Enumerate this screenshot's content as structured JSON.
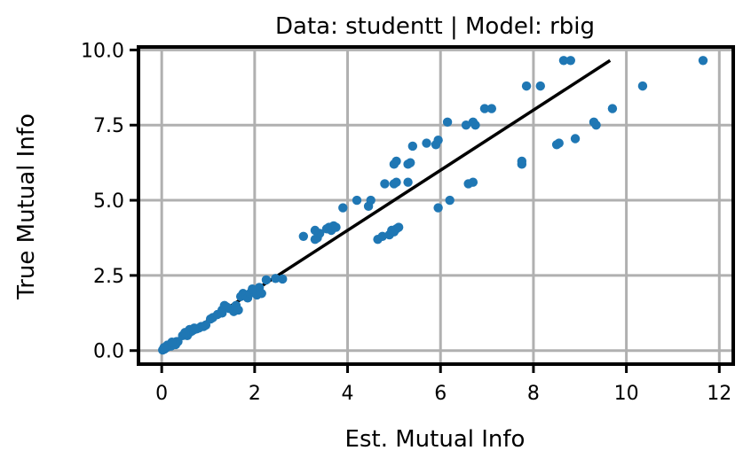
{
  "chart_data": {
    "type": "scatter",
    "title": "Data: studentt | Model: rbig",
    "xlabel": "Est. Mutual Info",
    "ylabel": "True Mutual Info",
    "xlim": [
      -0.5,
      12.3
    ],
    "ylim": [
      -0.45,
      10.1
    ],
    "xticks": [
      0,
      2,
      4,
      6,
      8,
      10,
      12
    ],
    "yticks": [
      0.0,
      2.5,
      5.0,
      7.5,
      10.0
    ],
    "xtick_labels": [
      "0",
      "2",
      "4",
      "6",
      "8",
      "10",
      "12"
    ],
    "ytick_labels": [
      "0.0",
      "2.5",
      "5.0",
      "7.5",
      "10.0"
    ],
    "grid": true,
    "colors": {
      "points": "#1f77b4",
      "line": "#000000",
      "grid": "#b0b0b0"
    },
    "reference_line": {
      "x": [
        0,
        9.65
      ],
      "y": [
        0,
        9.65
      ]
    },
    "points": [
      [
        0.02,
        0.02
      ],
      [
        0.04,
        0.04
      ],
      [
        0.06,
        0.05
      ],
      [
        0.08,
        0.08
      ],
      [
        0.1,
        0.1
      ],
      [
        0.12,
        0.12
      ],
      [
        0.15,
        0.15
      ],
      [
        0.18,
        0.18
      ],
      [
        0.2,
        0.2
      ],
      [
        0.22,
        0.22
      ],
      [
        0.25,
        0.22
      ],
      [
        0.28,
        0.25
      ],
      [
        0.3,
        0.28
      ],
      [
        0.32,
        0.3
      ],
      [
        0.35,
        0.3
      ],
      [
        0.2,
        0.15
      ],
      [
        0.12,
        0.18
      ],
      [
        0.3,
        0.2
      ],
      [
        0.22,
        0.28
      ],
      [
        0.05,
        0.1
      ],
      [
        0.45,
        0.5
      ],
      [
        0.5,
        0.55
      ],
      [
        0.55,
        0.5
      ],
      [
        0.6,
        0.6
      ],
      [
        0.65,
        0.65
      ],
      [
        0.7,
        0.7
      ],
      [
        0.75,
        0.72
      ],
      [
        0.8,
        0.75
      ],
      [
        0.85,
        0.8
      ],
      [
        0.9,
        0.8
      ],
      [
        0.95,
        0.85
      ],
      [
        0.6,
        0.7
      ],
      [
        0.7,
        0.75
      ],
      [
        0.5,
        0.6
      ],
      [
        1.05,
        1.05
      ],
      [
        1.1,
        1.1
      ],
      [
        1.2,
        1.2
      ],
      [
        1.3,
        1.35
      ],
      [
        1.35,
        1.5
      ],
      [
        1.45,
        1.4
      ],
      [
        1.55,
        1.3
      ],
      [
        1.6,
        1.5
      ],
      [
        1.7,
        1.8
      ],
      [
        1.75,
        1.9
      ],
      [
        1.8,
        1.85
      ],
      [
        1.85,
        1.75
      ],
      [
        1.9,
        1.9
      ],
      [
        2.0,
        2.0
      ],
      [
        2.05,
        1.85
      ],
      [
        2.1,
        2.1
      ],
      [
        2.15,
        1.9
      ],
      [
        2.25,
        2.35
      ],
      [
        2.45,
        2.4
      ],
      [
        2.6,
        2.38
      ],
      [
        1.95,
        2.05
      ],
      [
        1.4,
        1.45
      ],
      [
        1.65,
        1.35
      ],
      [
        1.3,
        1.25
      ],
      [
        3.05,
        3.8
      ],
      [
        3.3,
        3.7
      ],
      [
        3.35,
        3.75
      ],
      [
        3.4,
        3.9
      ],
      [
        3.3,
        4.0
      ],
      [
        3.55,
        4.05
      ],
      [
        3.6,
        4.1
      ],
      [
        3.65,
        4.0
      ],
      [
        3.7,
        4.15
      ],
      [
        3.75,
        4.1
      ],
      [
        3.9,
        4.75
      ],
      [
        4.2,
        5.0
      ],
      [
        4.45,
        4.8
      ],
      [
        4.5,
        5.0
      ],
      [
        4.65,
        3.7
      ],
      [
        4.75,
        3.8
      ],
      [
        4.8,
        5.55
      ],
      [
        4.9,
        3.85
      ],
      [
        4.95,
        4.0
      ],
      [
        5.0,
        3.95
      ],
      [
        5.05,
        4.05
      ],
      [
        5.1,
        4.1
      ],
      [
        5.0,
        5.55
      ],
      [
        5.05,
        5.6
      ],
      [
        5.0,
        6.2
      ],
      [
        5.05,
        6.3
      ],
      [
        5.3,
        5.6
      ],
      [
        5.3,
        6.2
      ],
      [
        5.35,
        6.25
      ],
      [
        5.4,
        6.8
      ],
      [
        5.7,
        6.9
      ],
      [
        5.9,
        6.85
      ],
      [
        5.95,
        7.0
      ],
      [
        5.95,
        4.75
      ],
      [
        6.2,
        5.0
      ],
      [
        6.15,
        7.6
      ],
      [
        6.55,
        7.5
      ],
      [
        6.6,
        5.55
      ],
      [
        6.7,
        5.6
      ],
      [
        6.7,
        7.6
      ],
      [
        6.75,
        7.5
      ],
      [
        6.95,
        8.05
      ],
      [
        7.1,
        8.05
      ],
      [
        7.75,
        6.2
      ],
      [
        7.75,
        6.3
      ],
      [
        7.85,
        8.8
      ],
      [
        8.15,
        8.8
      ],
      [
        8.5,
        6.85
      ],
      [
        8.55,
        6.9
      ],
      [
        8.65,
        9.65
      ],
      [
        8.8,
        9.65
      ],
      [
        8.9,
        7.05
      ],
      [
        9.3,
        7.6
      ],
      [
        9.35,
        7.5
      ],
      [
        9.7,
        8.05
      ],
      [
        10.35,
        8.8
      ],
      [
        11.65,
        9.65
      ]
    ]
  }
}
